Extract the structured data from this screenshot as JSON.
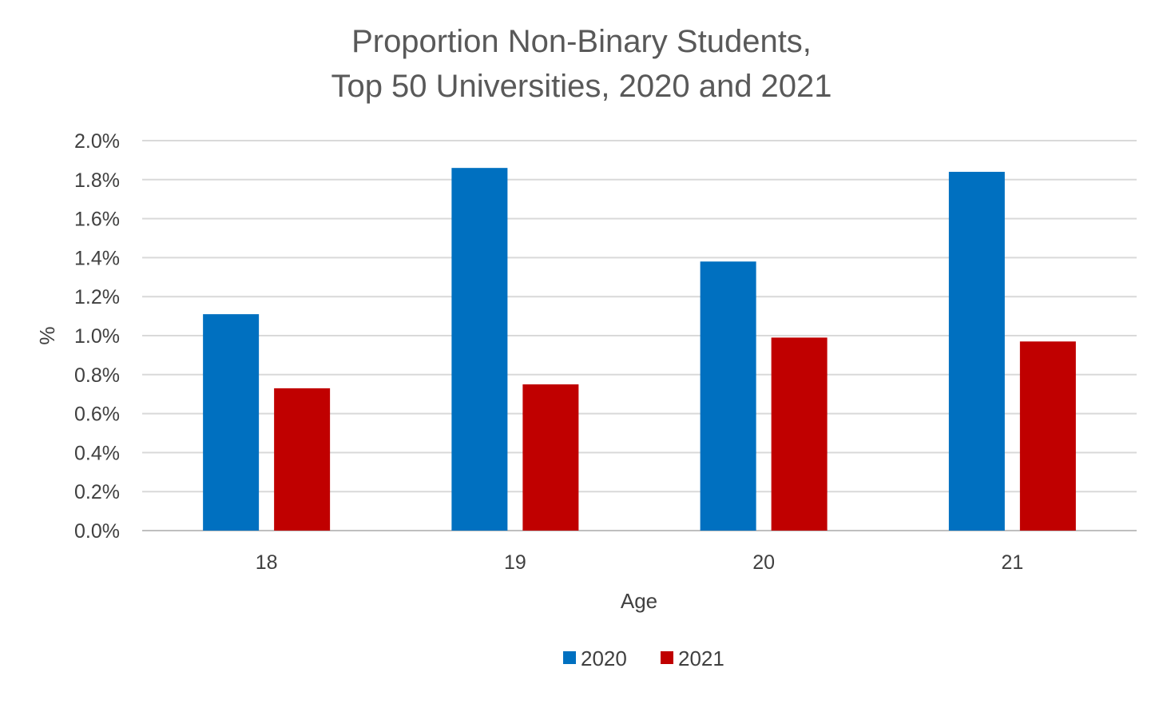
{
  "chart_data": {
    "type": "bar",
    "title": [
      "Proportion Non-Binary Students,",
      "Top 50 Universities, 2020 and 2021"
    ],
    "xlabel": "Age",
    "ylabel": "%",
    "categories": [
      "18",
      "19",
      "20",
      "21"
    ],
    "series": [
      {
        "name": "2020",
        "color": "#0070C0",
        "values": [
          1.11,
          1.86,
          1.38,
          1.84
        ]
      },
      {
        "name": "2021",
        "color": "#C00000",
        "values": [
          0.73,
          0.75,
          0.99,
          0.97
        ]
      }
    ],
    "ylim": [
      0,
      2.0
    ],
    "yticks": [
      "0.0%",
      "0.2%",
      "0.4%",
      "0.6%",
      "0.8%",
      "1.0%",
      "1.2%",
      "1.4%",
      "1.6%",
      "1.8%",
      "2.0%"
    ],
    "grid": true,
    "legend_position": "bottom"
  }
}
